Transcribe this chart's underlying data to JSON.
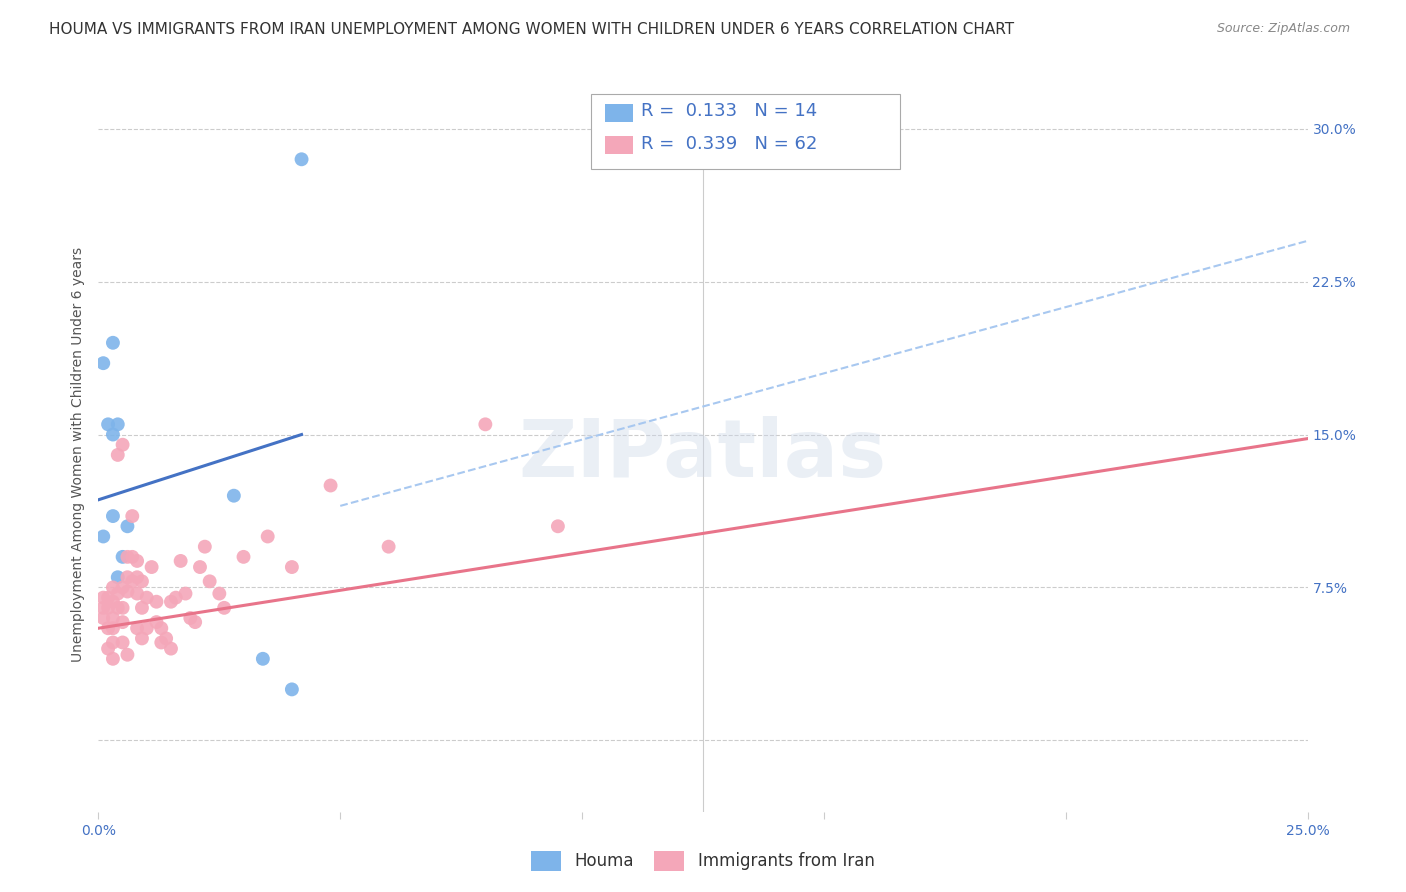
{
  "title": "HOUMA VS IMMIGRANTS FROM IRAN UNEMPLOYMENT AMONG WOMEN WITH CHILDREN UNDER 6 YEARS CORRELATION CHART",
  "source": "Source: ZipAtlas.com",
  "ylabel": "Unemployment Among Women with Children Under 6 years",
  "xmin": 0.0,
  "xmax": 0.25,
  "ymin": -0.035,
  "ymax": 0.315,
  "houma_color": "#7eb4ea",
  "iran_color": "#f4a7b9",
  "houma_line_color": "#4472c4",
  "iran_line_color": "#e8748a",
  "trend_dashed_color": "#a8c8f0",
  "houma_R": "0.133",
  "houma_N": "14",
  "iran_R": "0.339",
  "iran_N": "62",
  "houma_x": [
    0.001,
    0.001,
    0.002,
    0.003,
    0.003,
    0.003,
    0.004,
    0.004,
    0.005,
    0.006,
    0.028,
    0.034,
    0.04,
    0.042
  ],
  "houma_y": [
    0.1,
    0.185,
    0.155,
    0.15,
    0.195,
    0.11,
    0.155,
    0.08,
    0.09,
    0.105,
    0.12,
    0.04,
    0.025,
    0.285
  ],
  "iran_x": [
    0.001,
    0.001,
    0.001,
    0.002,
    0.002,
    0.002,
    0.002,
    0.003,
    0.003,
    0.003,
    0.003,
    0.003,
    0.003,
    0.004,
    0.004,
    0.004,
    0.005,
    0.005,
    0.005,
    0.005,
    0.005,
    0.006,
    0.006,
    0.006,
    0.006,
    0.007,
    0.007,
    0.007,
    0.008,
    0.008,
    0.008,
    0.008,
    0.009,
    0.009,
    0.009,
    0.01,
    0.01,
    0.011,
    0.012,
    0.012,
    0.013,
    0.013,
    0.014,
    0.015,
    0.015,
    0.016,
    0.017,
    0.018,
    0.019,
    0.02,
    0.021,
    0.022,
    0.023,
    0.025,
    0.026,
    0.03,
    0.035,
    0.04,
    0.048,
    0.06,
    0.08,
    0.095
  ],
  "iran_y": [
    0.07,
    0.065,
    0.06,
    0.07,
    0.065,
    0.055,
    0.045,
    0.075,
    0.068,
    0.06,
    0.055,
    0.048,
    0.04,
    0.14,
    0.072,
    0.065,
    0.145,
    0.075,
    0.065,
    0.058,
    0.048,
    0.09,
    0.08,
    0.073,
    0.042,
    0.11,
    0.09,
    0.078,
    0.088,
    0.08,
    0.072,
    0.055,
    0.078,
    0.065,
    0.05,
    0.07,
    0.055,
    0.085,
    0.068,
    0.058,
    0.055,
    0.048,
    0.05,
    0.068,
    0.045,
    0.07,
    0.088,
    0.072,
    0.06,
    0.058,
    0.085,
    0.095,
    0.078,
    0.072,
    0.065,
    0.09,
    0.1,
    0.085,
    0.125,
    0.095,
    0.155,
    0.105
  ],
  "houma_trend_x": [
    0.0,
    0.042
  ],
  "houma_trend_y": [
    0.118,
    0.15
  ],
  "iran_trend_x": [
    0.0,
    0.25
  ],
  "iran_trend_y": [
    0.055,
    0.148
  ],
  "dashed_trend_x": [
    0.05,
    0.25
  ],
  "dashed_trend_y": [
    0.115,
    0.245
  ],
  "watermark": "ZIPatlas",
  "legend_labels": [
    "Houma",
    "Immigrants from Iran"
  ],
  "title_fontsize": 11,
  "axis_label_fontsize": 10,
  "tick_fontsize": 10,
  "legend_fontsize": 12,
  "source_fontsize": 9
}
